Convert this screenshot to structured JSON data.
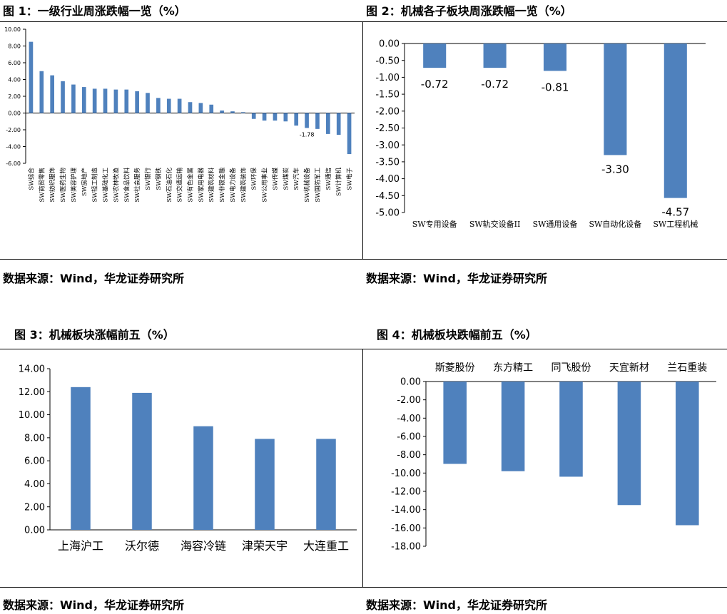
{
  "bar_color": "#4f81bd",
  "charts": {
    "c1": {
      "title": "图 1：一级行业周涨跌幅一览（%）",
      "source": "数据来源：Wind，华龙证券研究所"
    },
    "c2": {
      "title": "图 2：机械各子板块周涨跌幅一览（%）",
      "source": "数据来源：Wind，华龙证券研究所"
    },
    "c3": {
      "title": "图 3：机械板块涨幅前五（%）",
      "source": "数据来源：Wind，华龙证券研究所"
    },
    "c4": {
      "title": "图 4：机械板块跌幅前五（%）",
      "source": "数据来源：Wind，华龙证券研究所"
    }
  },
  "chart_data": [
    {
      "id": "c1",
      "type": "bar",
      "title": "图 1：一级行业周涨跌幅一览（%）",
      "categories": [
        "SW综合",
        "SW商贸零售",
        "SW纺织服饰",
        "SW医药生物",
        "SW美容护理",
        "SW房地产",
        "SW轻工制造",
        "SW基础化工",
        "SW农林牧渔",
        "SW食品饮料",
        "SW社会服务",
        "SW银行",
        "SW钢铁",
        "SW石油石化",
        "SW交通运输",
        "SW有色金属",
        "SW家用电器",
        "SW建筑材料",
        "SW非银金融",
        "SW电力设备",
        "SW建筑装饰",
        "SW环保",
        "SW公用事业",
        "SW传媒",
        "SW煤炭",
        "SW汽车",
        "SW机械设备",
        "SW国防军工",
        "SW通信",
        "SW计算机",
        "SW电子"
      ],
      "values": [
        8.5,
        5.0,
        4.5,
        3.8,
        3.4,
        3.1,
        2.9,
        2.9,
        2.8,
        2.8,
        2.6,
        2.4,
        1.8,
        1.7,
        1.7,
        1.3,
        1.2,
        1.0,
        0.3,
        0.2,
        0.1,
        -0.7,
        -0.9,
        -0.9,
        -1.0,
        -1.5,
        -1.78,
        -1.9,
        -2.5,
        -2.6,
        -4.9
      ],
      "annotations": [
        {
          "index": 26,
          "label": "-1.78"
        }
      ],
      "ylim": [
        -6,
        10
      ],
      "yticks": [
        "10.00",
        "8.00",
        "6.00",
        "4.00",
        "2.00",
        "0.00",
        "-2.00",
        "-4.00",
        "-6.00"
      ],
      "grid": false
    },
    {
      "id": "c2",
      "type": "bar",
      "title": "图 2：机械各子板块周涨跌幅一览（%）",
      "categories": [
        "SW专用设备",
        "SW轨交设备II",
        "SW通用设备",
        "SW自动化设备",
        "SW工程机械"
      ],
      "values": [
        -0.72,
        -0.72,
        -0.81,
        -3.3,
        -4.57
      ],
      "data_labels": [
        "-0.72",
        "-0.72",
        "-0.81",
        "-3.30",
        "-4.57"
      ],
      "ylim": [
        -5,
        0
      ],
      "yticks": [
        "0.00",
        "-0.50",
        "-1.00",
        "-1.50",
        "-2.00",
        "-2.50",
        "-3.00",
        "-3.50",
        "-4.00",
        "-4.50",
        "-5.00"
      ],
      "grid": false
    },
    {
      "id": "c3",
      "type": "bar",
      "title": "图 3：机械板块涨幅前五（%）",
      "categories": [
        "上海沪工",
        "沃尔德",
        "海容冷链",
        "津荣天宇",
        "大连重工"
      ],
      "values": [
        12.4,
        11.9,
        9.0,
        7.9,
        7.9
      ],
      "ylim": [
        0,
        14
      ],
      "yticks": [
        "14.00",
        "12.00",
        "10.00",
        "8.00",
        "6.00",
        "4.00",
        "2.00",
        "0.00"
      ],
      "grid": false
    },
    {
      "id": "c4",
      "type": "bar",
      "title": "图 4：机械板块跌幅前五（%）",
      "categories": [
        "斯菱股份",
        "东方精工",
        "同飞股份",
        "天宜新材",
        "兰石重装"
      ],
      "values": [
        -9.0,
        -9.8,
        -10.4,
        -13.5,
        -15.7
      ],
      "ylim": [
        -18,
        0
      ],
      "yticks": [
        "0.00",
        "-2.00",
        "-4.00",
        "-6.00",
        "-8.00",
        "-10.00",
        "-12.00",
        "-14.00",
        "-16.00",
        "-18.00"
      ],
      "grid": false
    }
  ]
}
